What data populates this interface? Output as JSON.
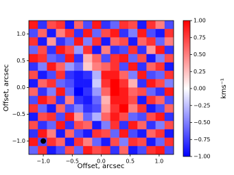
{
  "chart_data": {
    "type": "heatmap",
    "colormap": "bwr",
    "xlabel": "Offset, arcsec",
    "ylabel": "Offset, arcsec",
    "colorbar_label": "kms⁻¹",
    "xlim": [
      -1.25,
      1.25
    ],
    "ylim": [
      -1.25,
      1.25
    ],
    "clim": [
      -1,
      1
    ],
    "xticks": [
      {
        "value": -1,
        "label": "−1.0"
      },
      {
        "value": -0.5,
        "label": "−0.5"
      },
      {
        "value": 0,
        "label": "0.0"
      },
      {
        "value": 0.5,
        "label": "0.5"
      },
      {
        "value": 1,
        "label": "1.0"
      }
    ],
    "yticks": [
      {
        "value": -1,
        "label": "−1.0"
      },
      {
        "value": -0.5,
        "label": "−0.5"
      },
      {
        "value": 0,
        "label": "0.0"
      },
      {
        "value": 0.5,
        "label": "0.5"
      },
      {
        "value": 1,
        "label": "1.0"
      }
    ],
    "cticks": [
      {
        "value": -1,
        "label": "−1.00"
      },
      {
        "value": -0.75,
        "label": "−0.75"
      },
      {
        "value": -0.5,
        "label": "−0.50"
      },
      {
        "value": -0.25,
        "label": "−0.25"
      },
      {
        "value": 0,
        "label": "0.00"
      },
      {
        "value": 0.25,
        "label": "0.25"
      },
      {
        "value": 0.5,
        "label": "0.50"
      },
      {
        "value": 0.75,
        "label": "0.75"
      },
      {
        "value": 1,
        "label": "1.00"
      }
    ],
    "beam": {
      "x": -1,
      "y": -1
    },
    "z": [
      [
        0.9,
        -0.8,
        0.7,
        0.8,
        -0.9,
        0.6,
        -0.7,
        0.9,
        -0.8,
        -0.6,
        0.8,
        0.7,
        -0.9,
        0.8,
        0.5,
        -0.7
      ],
      [
        -0.7,
        0.6,
        -0.9,
        0.5,
        0.8,
        -0.8,
        0.9,
        -0.6,
        0.7,
        0.9,
        -0.8,
        -0.5,
        0.9,
        -0.7,
        -0.9,
        0.8
      ],
      [
        0.8,
        -0.9,
        0.4,
        -0.8,
        -0.6,
        0.9,
        -0.5,
        0.8,
        -0.9,
        0.6,
        0.7,
        -0.9,
        0.6,
        0.8,
        -0.6,
        0.5
      ],
      [
        -0.6,
        0.7,
        -0.8,
        0.9,
        0.7,
        -0.4,
        0.8,
        -0.9,
        0.5,
        -0.8,
        -0.7,
        0.8,
        -0.8,
        0.4,
        0.9,
        -0.8
      ],
      [
        0.9,
        0.8,
        -0.6,
        -0.7,
        0.9,
        -0.8,
        0.3,
        0.6,
        -0.7,
        0.8,
        0.9,
        -0.6,
        0.7,
        -0.9,
        -0.5,
        0.7
      ],
      [
        -0.8,
        -0.5,
        0.9,
        0.6,
        -0.4,
        -0.6,
        0.2,
        0.5,
        0.6,
        0.8,
        -0.7,
        0.9,
        -0.8,
        0.6,
        0.8,
        -0.9
      ],
      [
        0.7,
        -0.9,
        -0.7,
        0.8,
        -0.8,
        -0.9,
        -0.8,
        -0.3,
        0.9,
        0.9,
        0.6,
        -0.5,
        0.9,
        -0.7,
        -0.6,
        0.8
      ],
      [
        -0.9,
        0.6,
        0.8,
        -0.6,
        -0.7,
        -0.9,
        -0.9,
        -0.2,
        0.8,
        1.0,
        0.8,
        0.3,
        -0.8,
        0.9,
        0.7,
        -0.5
      ],
      [
        0.6,
        -0.8,
        -0.5,
        0.9,
        -0.6,
        -1.0,
        -0.8,
        -0.4,
        0.6,
        1.0,
        0.9,
        0.6,
        0.7,
        -0.6,
        -0.8,
        0.9
      ],
      [
        -0.7,
        0.9,
        0.7,
        -0.8,
        0.5,
        -0.8,
        -0.9,
        -0.6,
        0.3,
        0.9,
        0.9,
        0.7,
        -0.9,
        0.8,
        0.6,
        -0.7
      ],
      [
        0.8,
        -0.6,
        -0.9,
        0.6,
        -0.7,
        -0.5,
        -0.8,
        -0.7,
        0.4,
        0.8,
        1.0,
        0.5,
        0.8,
        -0.9,
        -0.7,
        0.6
      ],
      [
        -0.9,
        0.7,
        0.8,
        -0.7,
        0.9,
        0.4,
        -0.6,
        -0.3,
        0.6,
        0.9,
        0.7,
        -0.6,
        -0.7,
        0.7,
        0.9,
        -0.8
      ],
      [
        0.7,
        -0.8,
        -0.6,
        0.9,
        -0.8,
        0.7,
        0.6,
        -0.9,
        -0.5,
        0.8,
        -0.8,
        0.9,
        0.6,
        -0.8,
        -0.5,
        0.7
      ],
      [
        -0.8,
        0.9,
        0.5,
        -0.9,
        0.6,
        -0.7,
        -0.9,
        0.8,
        0.7,
        -0.6,
        0.9,
        -0.7,
        -0.9,
        0.6,
        0.8,
        -0.9
      ],
      [
        0.9,
        -0.7,
        0.8,
        0.6,
        -0.9,
        0.8,
        0.5,
        -0.6,
        -0.9,
        0.7,
        -0.5,
        0.8,
        0.7,
        -0.9,
        -0.6,
        0.8
      ],
      [
        -0.6,
        0.8,
        -0.9,
        -0.7,
        0.7,
        -0.6,
        0.9,
        0.7,
        0.8,
        -0.8,
        0.6,
        -0.9,
        -0.7,
        0.8,
        0.9,
        -0.7
      ]
    ]
  }
}
